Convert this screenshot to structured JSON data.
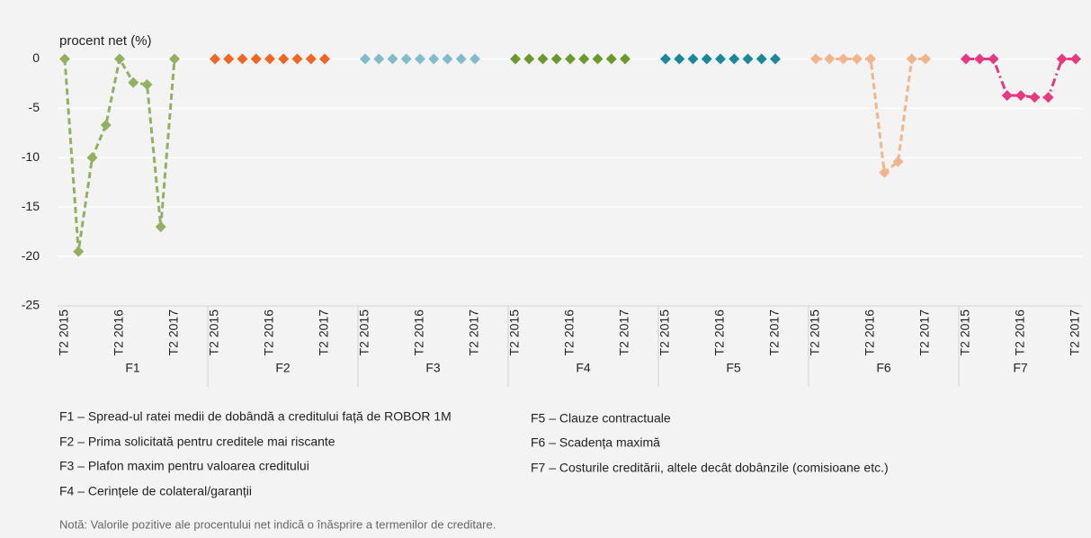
{
  "chart_data": {
    "type": "line",
    "y_label": "procent net (%)",
    "categories": [
      "T2 2015",
      null,
      null,
      null,
      "T2 2016",
      null,
      null,
      null,
      "T2 2017"
    ],
    "ylim": [
      -25,
      2.5
    ],
    "yticks": [
      -25,
      -20,
      -15,
      -10,
      -5,
      0
    ],
    "grid": true,
    "series": [
      {
        "name": "F1",
        "color": "#93b060",
        "dash": "dashed",
        "values": [
          0,
          -19.5,
          -10,
          -6.7,
          0,
          -2.4,
          -2.6,
          -17,
          0
        ]
      },
      {
        "name": "F2",
        "color": "#f26522",
        "dash": "none",
        "values": [
          0,
          0,
          0,
          0,
          0,
          0,
          0,
          0,
          0
        ]
      },
      {
        "name": "F3",
        "color": "#82bccb",
        "dash": "none",
        "values": [
          0,
          0,
          0,
          0,
          0,
          0,
          0,
          0,
          0
        ]
      },
      {
        "name": "F4",
        "color": "#6b9a2c",
        "dash": "none",
        "values": [
          0,
          0,
          0,
          0,
          0,
          0,
          0,
          0,
          0
        ]
      },
      {
        "name": "F5",
        "color": "#17899a",
        "dash": "none",
        "values": [
          0,
          0,
          0,
          0,
          0,
          0,
          0,
          0,
          0
        ]
      },
      {
        "name": "F6",
        "color": "#f2b48a",
        "dash": "dashed",
        "values": [
          0,
          0,
          0,
          0,
          0,
          -11.5,
          -10.4,
          0,
          0
        ]
      },
      {
        "name": "F7",
        "color": "#e6397f",
        "dash": "dashdot",
        "values": [
          0,
          0,
          0,
          -3.7,
          -3.7,
          -3.9,
          -3.9,
          0,
          0
        ]
      }
    ],
    "descriptions": [
      "F1 – Spread-ul ratei medii de dobândă a creditului față de ROBOR 1M",
      "F2 – Prima solicitată pentru creditele mai riscante",
      "F3 – Plafon maxim pentru valoarea creditului",
      "F4 – Cerințele de colateral/garanții",
      "F5 – Clauze contractuale",
      "F6 – Scadența maximă",
      "F7 – Costurile creditării, altele decât dobânzile (comisioane etc.)"
    ],
    "note": "Notă: Valorile pozitive ale procentului net indică o înăsprire a termenilor de creditare."
  }
}
